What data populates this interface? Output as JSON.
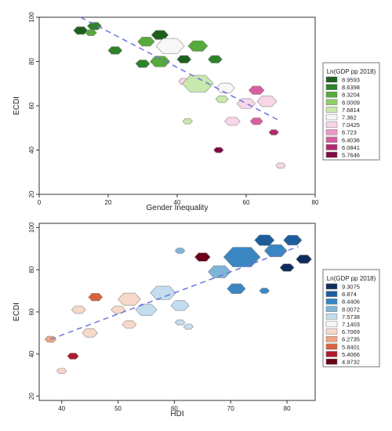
{
  "chart_data": [
    {
      "type": "scatter",
      "marker": "hexagon",
      "xlabel": "Gender Inequality",
      "ylabel": "ECDI",
      "x_ticks": [
        "0",
        "20",
        "40",
        "60",
        "80"
      ],
      "y_ticks": [
        "20",
        "40",
        "60",
        "80",
        "100"
      ],
      "xlim": [
        0,
        80
      ],
      "ylim": [
        20,
        100
      ],
      "grid": false,
      "trendline": {
        "style": "dashed",
        "color": "#6b75e0",
        "x": [
          12,
          70
        ],
        "y": [
          100,
          53
        ]
      },
      "legend": {
        "title": "Ln(GDP pp 2018)",
        "placement": "right",
        "entries": [
          {
            "label": "8.9593",
            "color": "#1e5f1e"
          },
          {
            "label": "8.6398",
            "color": "#2d822a"
          },
          {
            "label": "8.3204",
            "color": "#56a93b"
          },
          {
            "label": "8.0009",
            "color": "#8fcd69"
          },
          {
            "label": "7.6814",
            "color": "#c8e8ad"
          },
          {
            "label": "7.362",
            "color": "#f7f7f7"
          },
          {
            "label": "7.0425",
            "color": "#f7d6e8"
          },
          {
            "label": "6.723",
            "color": "#e89ac5"
          },
          {
            "label": "6.4036",
            "color": "#d85ea0"
          },
          {
            "label": "6.0841",
            "color": "#b3286e"
          },
          {
            "label": "5.7646",
            "color": "#7f0a43"
          }
        ]
      },
      "points": [
        {
          "x": 12,
          "y": 94,
          "size": 1.0,
          "color": "#1e5f1e"
        },
        {
          "x": 15,
          "y": 93,
          "size": 0.8,
          "color": "#56a93b"
        },
        {
          "x": 16,
          "y": 96,
          "size": 1.0,
          "color": "#2d822a"
        },
        {
          "x": 22,
          "y": 85,
          "size": 1.0,
          "color": "#2d822a"
        },
        {
          "x": 30,
          "y": 79,
          "size": 1.0,
          "color": "#2d822a"
        },
        {
          "x": 31,
          "y": 89,
          "size": 1.2,
          "color": "#56a93b"
        },
        {
          "x": 35,
          "y": 92,
          "size": 1.2,
          "color": "#1e5f1e"
        },
        {
          "x": 35,
          "y": 80,
          "size": 1.4,
          "color": "#56a93b"
        },
        {
          "x": 38,
          "y": 87,
          "size": 2.0,
          "color": "#f7f7f7"
        },
        {
          "x": 42,
          "y": 81,
          "size": 1.0,
          "color": "#1e5f1e"
        },
        {
          "x": 46,
          "y": 87,
          "size": 1.4,
          "color": "#56a93b"
        },
        {
          "x": 42,
          "y": 71,
          "size": 0.8,
          "color": "#f7d6e8"
        },
        {
          "x": 46,
          "y": 70,
          "size": 2.2,
          "color": "#c8e8ad"
        },
        {
          "x": 51,
          "y": 81,
          "size": 1.0,
          "color": "#2d822a"
        },
        {
          "x": 43,
          "y": 53,
          "size": 0.7,
          "color": "#c8e8ad"
        },
        {
          "x": 54,
          "y": 68,
          "size": 1.3,
          "color": "#f7f7f7"
        },
        {
          "x": 53,
          "y": 63,
          "size": 0.9,
          "color": "#c8e8ad"
        },
        {
          "x": 60,
          "y": 61,
          "size": 1.3,
          "color": "#f7d6e8"
        },
        {
          "x": 63,
          "y": 67,
          "size": 1.1,
          "color": "#d85ea0"
        },
        {
          "x": 66,
          "y": 62,
          "size": 1.4,
          "color": "#f7d6e8"
        },
        {
          "x": 56,
          "y": 53,
          "size": 1.1,
          "color": "#f7d6e8"
        },
        {
          "x": 63,
          "y": 53,
          "size": 0.9,
          "color": "#d85ea0"
        },
        {
          "x": 52,
          "y": 40,
          "size": 0.7,
          "color": "#7f0a43"
        },
        {
          "x": 68,
          "y": 48,
          "size": 0.7,
          "color": "#b3286e"
        },
        {
          "x": 70,
          "y": 33,
          "size": 0.7,
          "color": "#f7d6e8"
        }
      ]
    },
    {
      "type": "scatter",
      "marker": "hexagon",
      "xlabel": "HDI",
      "ylabel": "ECDI",
      "x_ticks": [
        "40",
        "50",
        "60",
        "70",
        "80"
      ],
      "y_ticks": [
        "20",
        "40",
        "60",
        "80",
        "100"
      ],
      "xlim": [
        36,
        85
      ],
      "ylim": [
        18,
        102
      ],
      "grid": false,
      "trendline": {
        "style": "dashed",
        "color": "#6b75e0",
        "x": [
          38,
          82
        ],
        "y": [
          47,
          91
        ]
      },
      "legend": {
        "title": "Ln(GDP pp 2018)",
        "placement": "right",
        "entries": [
          {
            "label": "9.3075",
            "color": "#0f2d5c"
          },
          {
            "label": "8.874",
            "color": "#1d5d9c"
          },
          {
            "label": "8.4406",
            "color": "#3a86c2"
          },
          {
            "label": "8.0072",
            "color": "#7eb6d8"
          },
          {
            "label": "7.5738",
            "color": "#c3ddee"
          },
          {
            "label": "7.1403",
            "color": "#f7f7f7"
          },
          {
            "label": "6.7069",
            "color": "#f8d8c8"
          },
          {
            "label": "6.2735",
            "color": "#f0a582"
          },
          {
            "label": "5.8401",
            "color": "#d8643f"
          },
          {
            "label": "5.4066",
            "color": "#b2182b"
          },
          {
            "label": "4.9732",
            "color": "#6b0018"
          }
        ]
      },
      "points": [
        {
          "x": 38,
          "y": 47,
          "size": 0.8,
          "color": "#f0a582"
        },
        {
          "x": 40,
          "y": 32,
          "size": 0.7,
          "color": "#f8d8c8"
        },
        {
          "x": 42,
          "y": 39,
          "size": 0.8,
          "color": "#b2182b"
        },
        {
          "x": 43,
          "y": 61,
          "size": 1.0,
          "color": "#f8d8c8"
        },
        {
          "x": 45,
          "y": 50,
          "size": 1.1,
          "color": "#f8d8c8"
        },
        {
          "x": 46,
          "y": 67,
          "size": 1.0,
          "color": "#d8643f"
        },
        {
          "x": 50,
          "y": 61,
          "size": 1.0,
          "color": "#f8d8c8"
        },
        {
          "x": 52,
          "y": 66,
          "size": 1.6,
          "color": "#f8d8c8"
        },
        {
          "x": 52,
          "y": 54,
          "size": 1.0,
          "color": "#f8d8c8"
        },
        {
          "x": 55,
          "y": 61,
          "size": 1.5,
          "color": "#c3ddee"
        },
        {
          "x": 58,
          "y": 69,
          "size": 1.8,
          "color": "#c3ddee"
        },
        {
          "x": 61,
          "y": 89,
          "size": 0.7,
          "color": "#7eb6d8"
        },
        {
          "x": 61,
          "y": 63,
          "size": 1.3,
          "color": "#c3ddee"
        },
        {
          "x": 61,
          "y": 55,
          "size": 0.7,
          "color": "#c3ddee"
        },
        {
          "x": 62.5,
          "y": 53,
          "size": 0.7,
          "color": "#c3ddee"
        },
        {
          "x": 65,
          "y": 86,
          "size": 1.1,
          "color": "#6b0018"
        },
        {
          "x": 68,
          "y": 79,
          "size": 1.6,
          "color": "#7eb6d8"
        },
        {
          "x": 72,
          "y": 86,
          "size": 2.6,
          "color": "#3a86c2"
        },
        {
          "x": 71,
          "y": 71,
          "size": 1.3,
          "color": "#3a86c2"
        },
        {
          "x": 76,
          "y": 94,
          "size": 1.4,
          "color": "#1d5d9c"
        },
        {
          "x": 78,
          "y": 89,
          "size": 1.6,
          "color": "#3a86c2"
        },
        {
          "x": 76,
          "y": 70,
          "size": 0.7,
          "color": "#3a86c2"
        },
        {
          "x": 80,
          "y": 81,
          "size": 1.0,
          "color": "#0f2d5c"
        },
        {
          "x": 81,
          "y": 94,
          "size": 1.3,
          "color": "#1d5d9c"
        },
        {
          "x": 83,
          "y": 85,
          "size": 1.1,
          "color": "#0f2d5c"
        }
      ]
    }
  ]
}
